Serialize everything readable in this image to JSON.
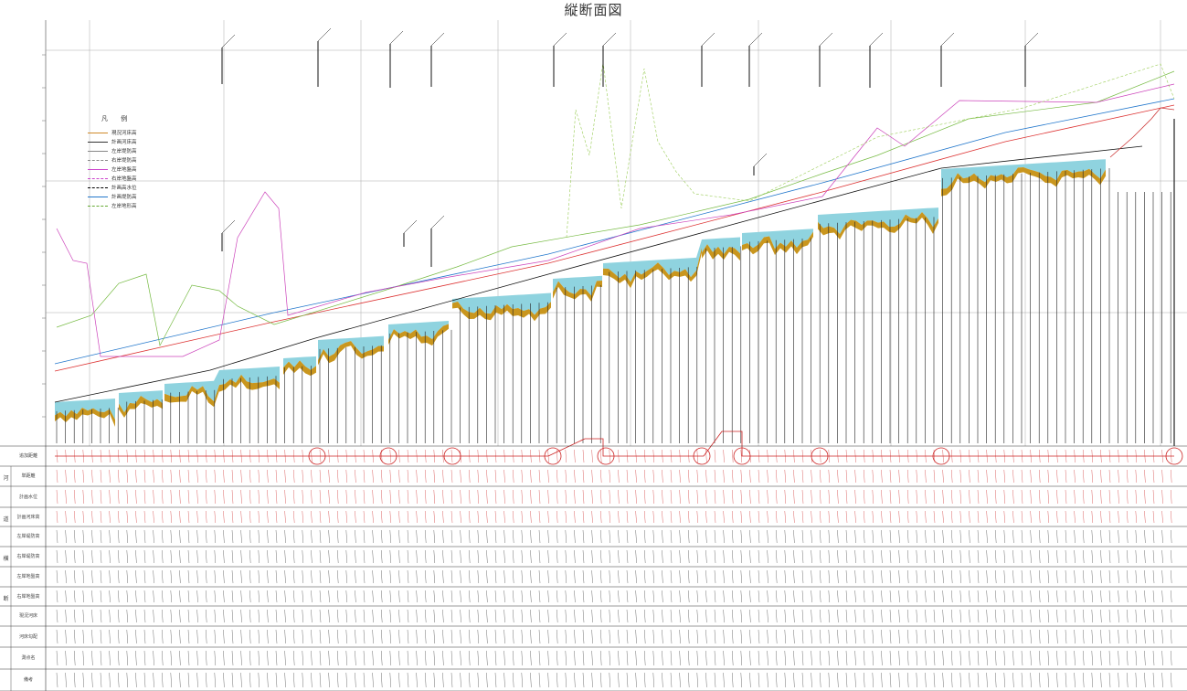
{
  "title": "縦断面図",
  "legend": {
    "title": "凡 例",
    "items": [
      {
        "label": "現況河床高",
        "color": "#d08a2a",
        "dash": ""
      },
      {
        "label": "計画河床高",
        "color": "#333333",
        "dash": ""
      },
      {
        "label": "左岸堤防高",
        "color": "#888888",
        "dash": ""
      },
      {
        "label": "右岸堤防高",
        "color": "#888888",
        "dash": "2,1"
      },
      {
        "label": "左岸地盤高",
        "color": "#cc44cc",
        "dash": ""
      },
      {
        "label": "右岸地盤高",
        "color": "#cc44cc",
        "dash": "3,2"
      },
      {
        "label": "計画高水位",
        "color": "#000000",
        "dash": "4,2"
      },
      {
        "label": "計画堤防高",
        "color": "#2277cc",
        "dash": ""
      },
      {
        "label": "左岸地形高",
        "color": "#66aa33",
        "dash": "3,2"
      }
    ]
  },
  "table_rows": [
    {
      "label": "追加距離",
      "group": "",
      "color": "#cc2222"
    },
    {
      "label": "単距離",
      "group": "河",
      "color": "#cc2222"
    },
    {
      "label": "計画水位",
      "group": "",
      "color": "#cc2222"
    },
    {
      "label": "計画河床高",
      "group": "道",
      "color": "#cc2222"
    },
    {
      "label": "左岸堤防高",
      "group": "",
      "color": "#333333"
    },
    {
      "label": "右岸堤防高",
      "group": "横",
      "color": "#333333"
    },
    {
      "label": "左岸地盤高",
      "group": "",
      "color": "#333333"
    },
    {
      "label": "右岸地盤高",
      "group": "断",
      "color": "#333333"
    },
    {
      "label": "現況河床",
      "group": "",
      "color": "#333333"
    },
    {
      "label": "河床勾配",
      "group": "",
      "color": "#333333"
    },
    {
      "label": "測点名",
      "group": "",
      "color": "#333333"
    },
    {
      "label": "備考",
      "group": "",
      "color": "#333333"
    }
  ],
  "colors": {
    "water": "#8fd3df",
    "riverbed": "#c9961e",
    "grid": "#aaaaaa",
    "right_levee": "#dd3333",
    "left_levee": "#2277cc",
    "ground_green": "#77bb44",
    "ground_magenta": "#cc44bb",
    "table_red": "#cc2222"
  }
}
